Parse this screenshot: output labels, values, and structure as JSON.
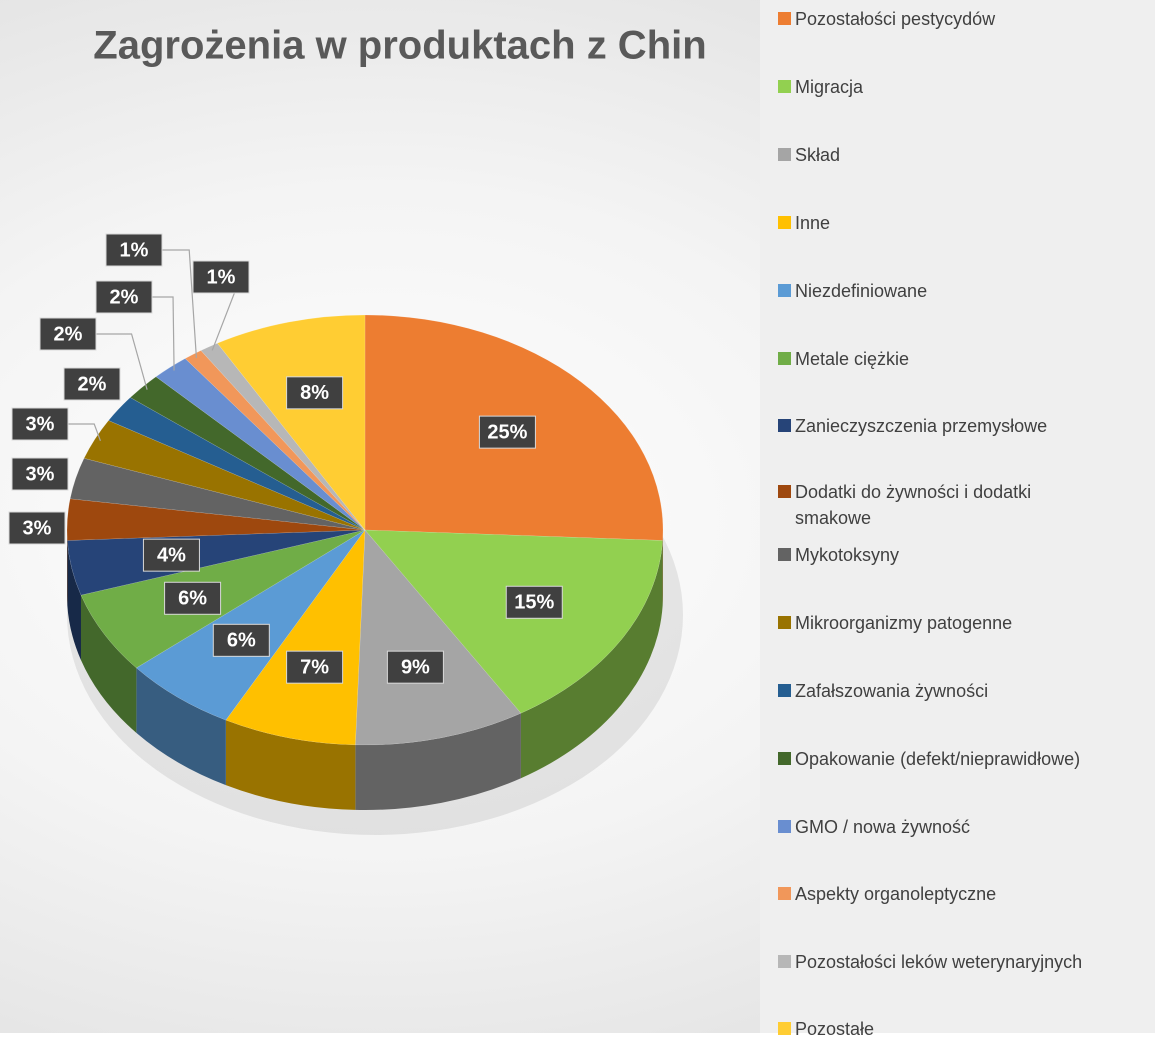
{
  "chart_data": {
    "type": "pie3d",
    "title": "Zagrożenia w produktach z Chin",
    "categories": [
      "Pozostałości pestycydów",
      "Migracja",
      "Skład",
      "Inne",
      "Niezdefiniowane",
      "Metale ciężkie",
      "Zanieczyszczenia przemysłowe",
      "Dodatki do żywności i dodatki smakowe",
      "Mykotoksyny",
      "Mikroorganizmy patogenne",
      "Zafałszowania żywności",
      "Opakowanie (defekt/nieprawidłowe)",
      "GMO / nowa żywność",
      "Aspekty organoleptyczne",
      "Pozostałości leków weterynaryjnych",
      "Pozostałe"
    ],
    "values": [
      25,
      15,
      9,
      7,
      6,
      6,
      4,
      3,
      3,
      3,
      2,
      2,
      2,
      1,
      1,
      8
    ],
    "value_labels": [
      "25%",
      "15%",
      "9%",
      "7%",
      "6%",
      "6%",
      "4%",
      "3%",
      "3%",
      "3%",
      "2%",
      "2%",
      "2%",
      "1%",
      "1%",
      "8%"
    ],
    "colors": [
      "#ed7d31",
      "#92d050",
      "#a5a5a5",
      "#ffc000",
      "#5b9bd5",
      "#70ad47",
      "#264478",
      "#9e480e",
      "#636363",
      "#997300",
      "#255e91",
      "#43682b",
      "#698ed0",
      "#f1975a",
      "#b7b7b7",
      "#ffcd33"
    ],
    "legend": "right"
  }
}
